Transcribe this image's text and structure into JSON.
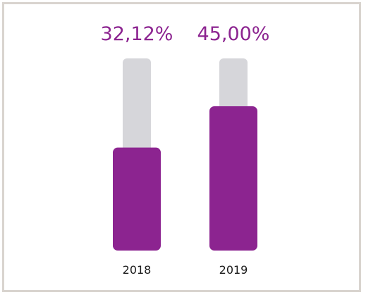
{
  "colors": {
    "bar": "#8c2490",
    "background_bar": "#d6d6da",
    "value_text": "#8c2490",
    "frame": "#d9d4cf"
  },
  "chart_data": {
    "type": "bar",
    "categories": [
      "2018",
      "2019"
    ],
    "values": [
      32.12,
      45.0
    ],
    "value_labels": [
      "32,12%",
      "45,00%"
    ]
  }
}
